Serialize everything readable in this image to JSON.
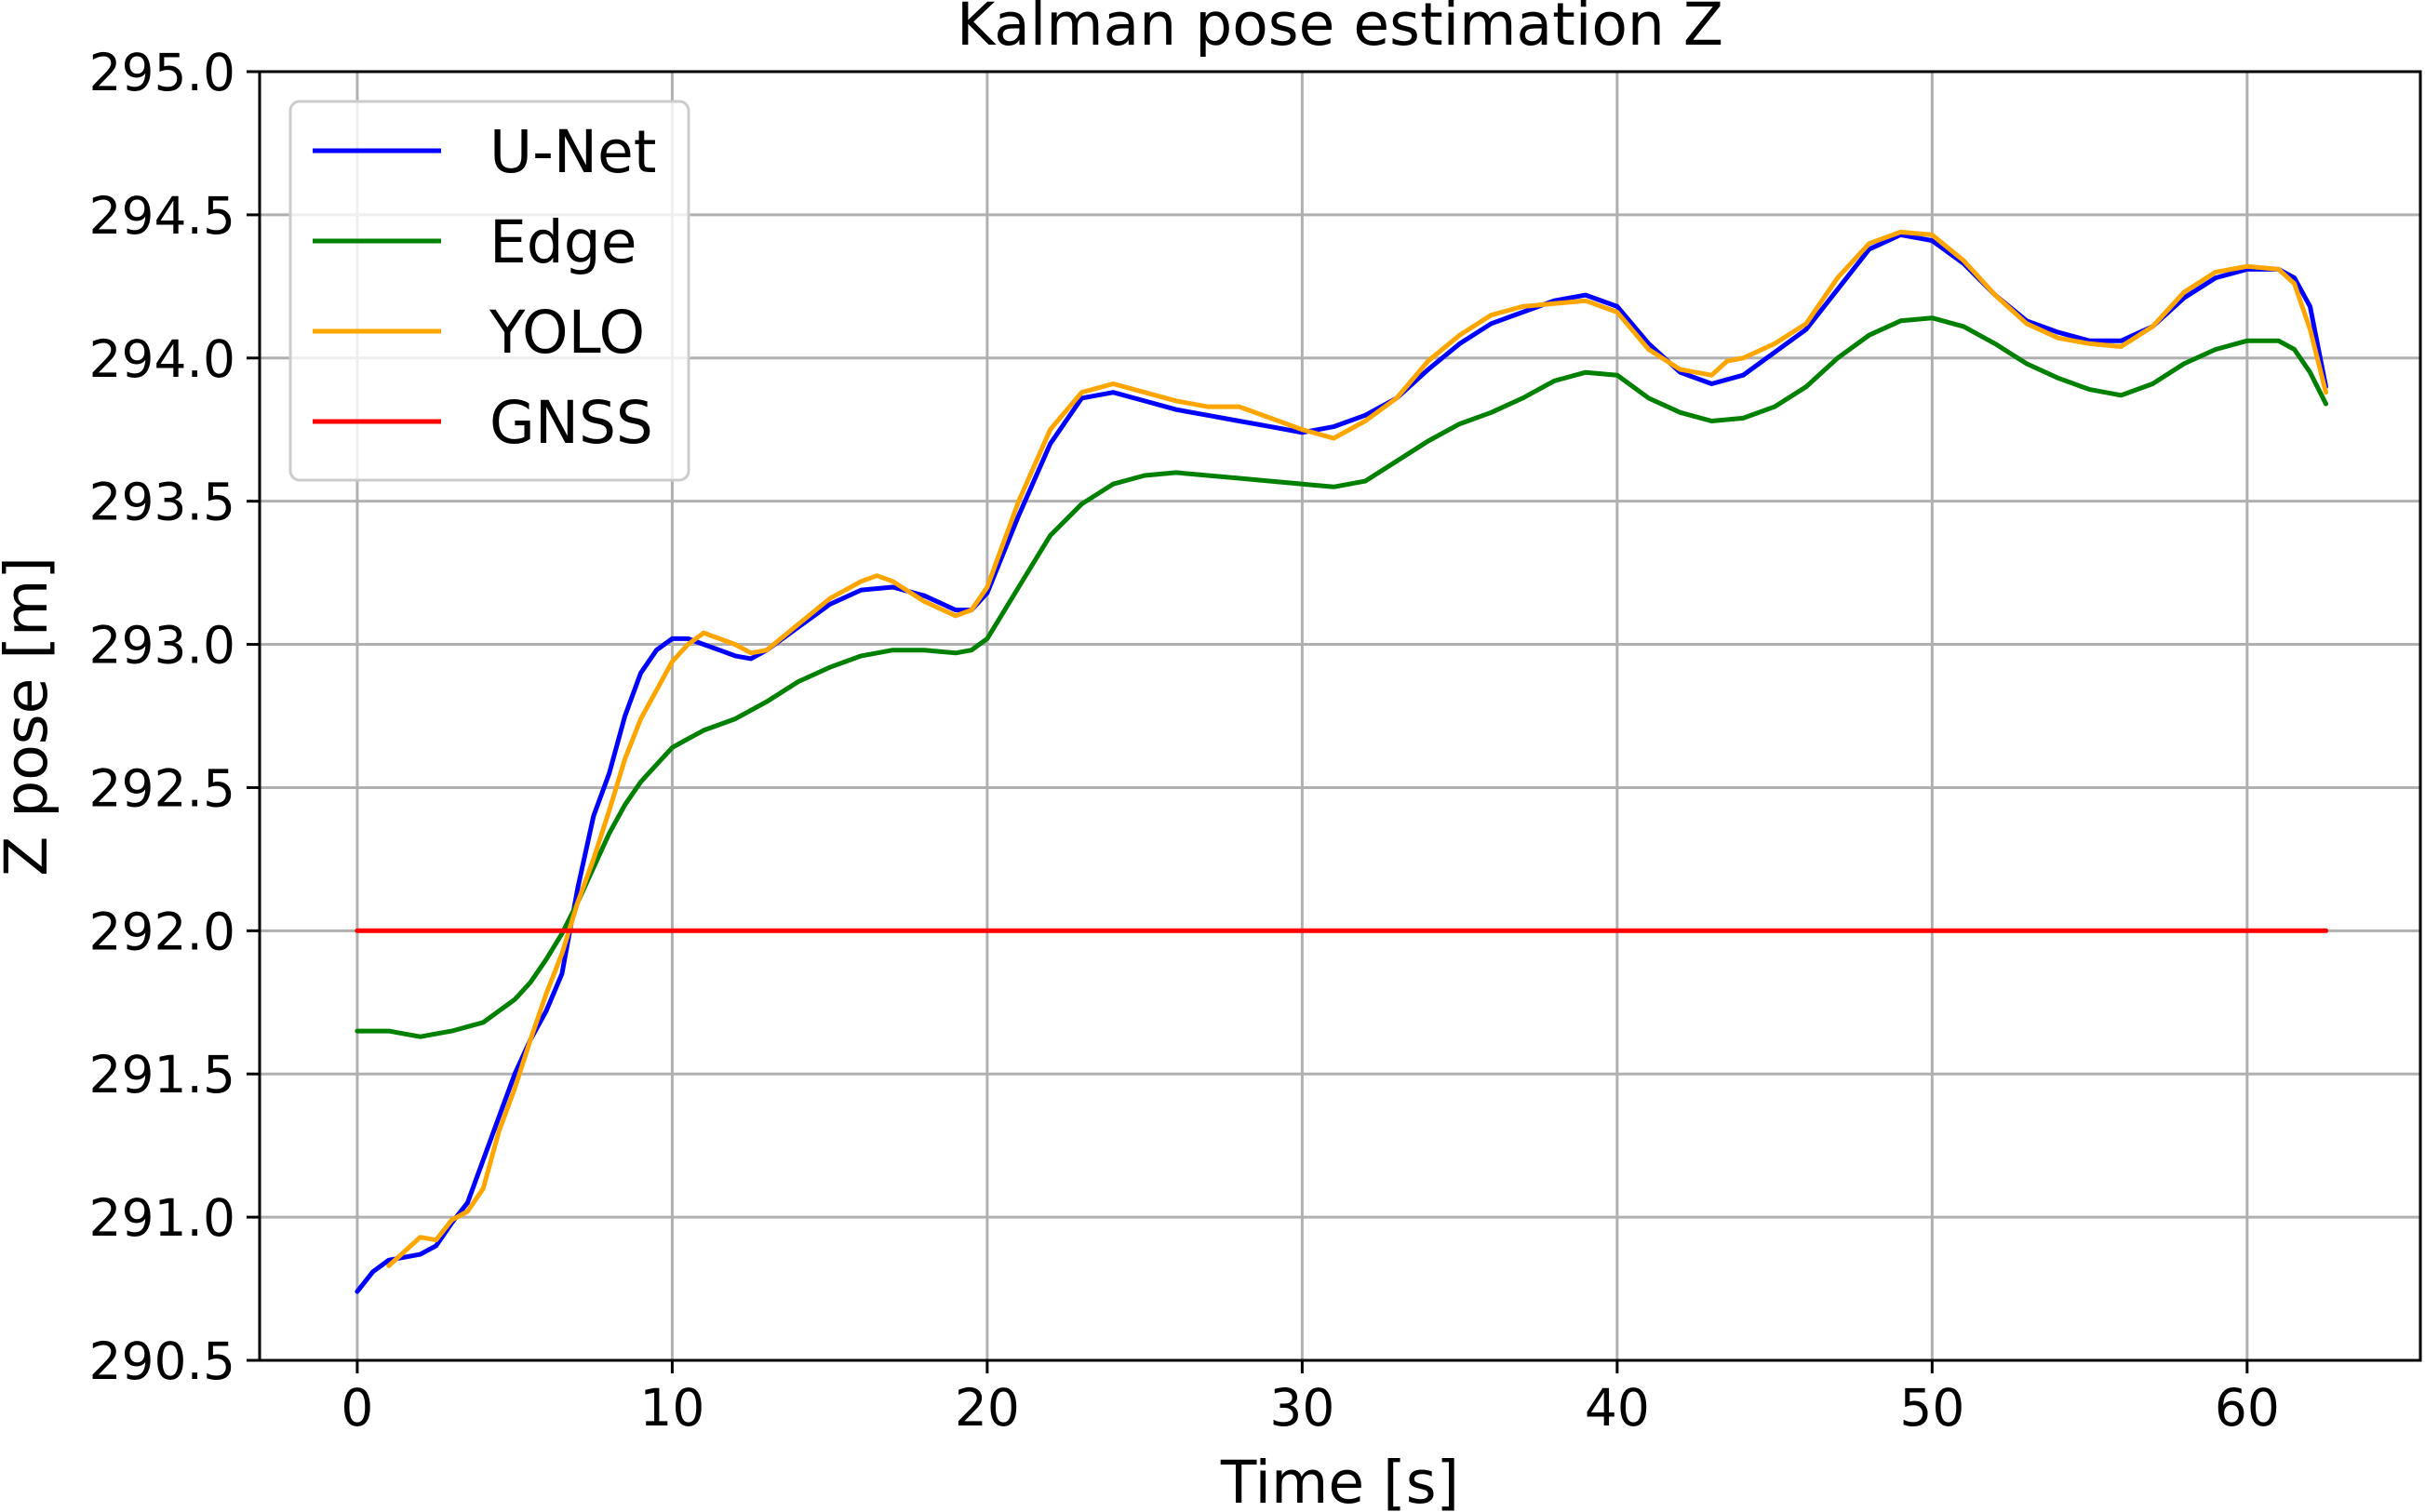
{
  "chart_data": {
    "type": "line",
    "title": "Kalman pose estimation Z",
    "xlabel": "Time [s]",
    "ylabel": "Z pose [m]",
    "xlim": [
      -3.1,
      65.5
    ],
    "ylim": [
      290.5,
      295.0
    ],
    "xticks": [
      0,
      10,
      20,
      30,
      40,
      50,
      60
    ],
    "yticks": [
      290.5,
      291.0,
      291.5,
      292.0,
      292.5,
      293.0,
      293.5,
      294.0,
      294.5,
      295.0
    ],
    "xtick_labels": [
      "0",
      "10",
      "20",
      "30",
      "40",
      "50",
      "60"
    ],
    "ytick_labels": [
      "290.5",
      "291.0",
      "291.5",
      "292.0",
      "292.5",
      "293.0",
      "293.5",
      "294.0",
      "294.5",
      "295.0"
    ],
    "grid": true,
    "legend_position": "top-left",
    "series": [
      {
        "name": "U-Net",
        "color": "#0000ff",
        "x": [
          0,
          0.5,
          1,
          1.5,
          2,
          2.5,
          3,
          3.5,
          4,
          4.5,
          5,
          5.5,
          6,
          6.5,
          7,
          7.5,
          8,
          8.5,
          9,
          9.5,
          10,
          10.5,
          11,
          11.5,
          12,
          12.5,
          13,
          14,
          15,
          16,
          17,
          18,
          19,
          19.5,
          20,
          21,
          22,
          23,
          24,
          25,
          26,
          27,
          28,
          29,
          30,
          31,
          32,
          33,
          34,
          35,
          36,
          37,
          38,
          39,
          40,
          41,
          42,
          43,
          44,
          45,
          46,
          47,
          48,
          49,
          50,
          51,
          52,
          53,
          54,
          55,
          56,
          57,
          58,
          59,
          60,
          61,
          61.5,
          62,
          62.5
        ],
        "values": [
          290.74,
          290.81,
          290.85,
          290.86,
          290.87,
          290.9,
          290.98,
          291.05,
          291.2,
          291.35,
          291.5,
          291.62,
          291.72,
          291.85,
          292.15,
          292.4,
          292.55,
          292.75,
          292.9,
          292.98,
          293.02,
          293.02,
          293.0,
          292.98,
          292.96,
          292.95,
          292.98,
          293.06,
          293.14,
          293.19,
          293.2,
          293.17,
          293.12,
          293.12,
          293.18,
          293.45,
          293.7,
          293.86,
          293.88,
          293.85,
          293.82,
          293.8,
          293.78,
          293.76,
          293.74,
          293.76,
          293.8,
          293.86,
          293.96,
          294.05,
          294.12,
          294.16,
          294.2,
          294.22,
          294.18,
          294.05,
          293.95,
          293.91,
          293.94,
          294.02,
          294.1,
          294.24,
          294.38,
          294.43,
          294.41,
          294.33,
          294.22,
          294.13,
          294.09,
          294.06,
          294.06,
          294.11,
          294.21,
          294.28,
          294.31,
          294.31,
          294.28,
          294.18,
          293.9
        ]
      },
      {
        "name": "Edge",
        "color": "#008000",
        "x": [
          0,
          1,
          2,
          2.5,
          3,
          4,
          4.5,
          5,
          5.5,
          6,
          6.5,
          7,
          7.5,
          8,
          8.5,
          9,
          9.5,
          10,
          10.5,
          11,
          12,
          13,
          14,
          15,
          16,
          17,
          18,
          19,
          19.5,
          20,
          21,
          22,
          23,
          24,
          25,
          26,
          27,
          28,
          29,
          30,
          31,
          32,
          33,
          34,
          35,
          36,
          37,
          38,
          39,
          40,
          41,
          42,
          43,
          44,
          45,
          46,
          47,
          48,
          49,
          50,
          51,
          52,
          53,
          54,
          55,
          56,
          57,
          58,
          59,
          60,
          61,
          61.5,
          62,
          62.5
        ],
        "values": [
          291.65,
          291.65,
          291.63,
          291.64,
          291.65,
          291.68,
          291.72,
          291.76,
          291.82,
          291.9,
          291.99,
          292.1,
          292.22,
          292.34,
          292.44,
          292.52,
          292.58,
          292.64,
          292.67,
          292.7,
          292.74,
          292.8,
          292.87,
          292.92,
          292.96,
          292.98,
          292.98,
          292.97,
          292.98,
          293.02,
          293.2,
          293.38,
          293.49,
          293.56,
          293.59,
          293.6,
          293.59,
          293.58,
          293.57,
          293.56,
          293.55,
          293.57,
          293.64,
          293.71,
          293.77,
          293.81,
          293.86,
          293.92,
          293.95,
          293.94,
          293.86,
          293.81,
          293.78,
          293.79,
          293.83,
          293.9,
          294.0,
          294.08,
          294.13,
          294.14,
          294.11,
          294.05,
          293.98,
          293.93,
          293.89,
          293.87,
          293.91,
          293.98,
          294.03,
          294.06,
          294.06,
          294.03,
          293.95,
          293.84
        ]
      },
      {
        "name": "YOLO",
        "color": "#ffa500",
        "x": [
          1,
          1.5,
          2,
          2.5,
          3,
          3.5,
          4,
          4.5,
          5,
          5.5,
          6,
          6.5,
          7,
          7.5,
          8,
          8.5,
          9,
          9.5,
          10,
          10.5,
          11,
          11.5,
          12,
          12.5,
          13,
          14,
          15,
          16,
          16.5,
          17,
          18,
          19,
          19.5,
          20,
          21,
          22,
          23,
          24,
          25,
          26,
          27,
          28,
          29,
          30,
          31,
          32,
          33,
          34,
          35,
          36,
          37,
          38,
          39,
          40,
          41,
          42,
          43,
          43.5,
          44,
          45,
          46,
          47,
          48,
          49,
          50,
          51,
          52,
          53,
          54,
          55,
          56,
          57,
          58,
          59,
          60,
          61,
          61.5,
          62,
          62.5
        ],
        "values": [
          290.83,
          290.88,
          290.93,
          290.92,
          290.99,
          291.02,
          291.1,
          291.3,
          291.45,
          291.62,
          291.78,
          291.92,
          292.1,
          292.25,
          292.42,
          292.6,
          292.74,
          292.84,
          292.94,
          293.0,
          293.04,
          293.02,
          293.0,
          292.97,
          292.98,
          293.07,
          293.16,
          293.22,
          293.24,
          293.22,
          293.15,
          293.1,
          293.12,
          293.2,
          293.5,
          293.75,
          293.88,
          293.91,
          293.88,
          293.85,
          293.83,
          293.83,
          293.79,
          293.75,
          293.72,
          293.78,
          293.86,
          293.99,
          294.08,
          294.15,
          294.18,
          294.19,
          294.2,
          294.16,
          294.03,
          293.96,
          293.94,
          293.99,
          294.0,
          294.05,
          294.12,
          294.28,
          294.4,
          294.44,
          294.43,
          294.34,
          294.22,
          294.12,
          294.07,
          294.05,
          294.04,
          294.11,
          294.23,
          294.3,
          294.32,
          294.31,
          294.26,
          294.1,
          293.88
        ]
      },
      {
        "name": "GNSS",
        "color": "#ff0000",
        "x": [
          0,
          62.5
        ],
        "values": [
          292.0,
          292.0
        ]
      }
    ]
  }
}
